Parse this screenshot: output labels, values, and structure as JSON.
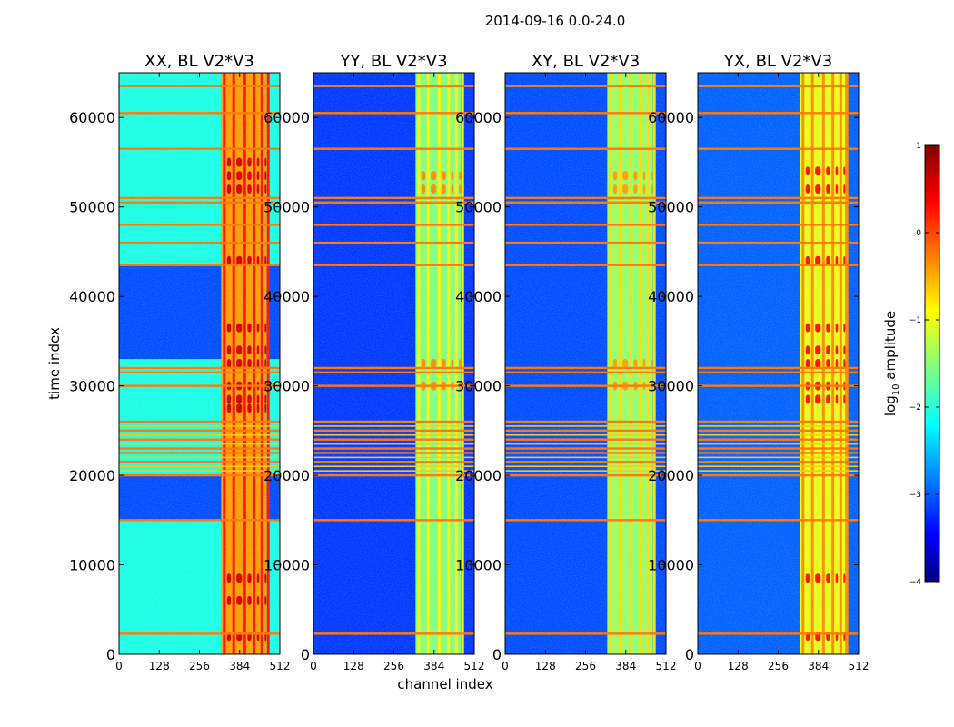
{
  "figure_title": "2014-09-16 0.0-24.0",
  "colorbar": {
    "label_prefix": "log",
    "label_sub": "10",
    "label_suffix": " amplitude",
    "min": -4,
    "max": 1,
    "tick_labels": [
      "−4",
      "−3",
      "−2",
      "−1",
      "0",
      "1"
    ],
    "tick_values": [
      -4,
      -3,
      -2,
      -1,
      0,
      1
    ],
    "colormap": "jet",
    "colors": [
      "#000080",
      "#0000ff",
      "#00ffff",
      "#ffff00",
      "#ff0000",
      "#800000"
    ]
  },
  "chart_data": {
    "type": "heatmap",
    "title": "2014-09-16 0.0-24.0",
    "xlabel": "channel index",
    "ylabel": "time index",
    "xlim": [
      0,
      512
    ],
    "ylim": [
      0,
      65000
    ],
    "x_ticks": [
      0,
      128,
      256,
      384,
      512
    ],
    "x_tick_labels": [
      "0",
      "128",
      "256",
      "384",
      "512"
    ],
    "y_ticks": [
      0,
      10000,
      20000,
      30000,
      40000,
      50000,
      60000
    ],
    "y_tick_labels": [
      "0",
      "10000",
      "20000",
      "30000",
      "40000",
      "50000",
      "60000"
    ],
    "value_label": "log10 amplitude",
    "value_range": [
      -4,
      1
    ],
    "panels": [
      {
        "title": "XX, BL V2*V3",
        "background_level": -2.0,
        "signal_band_channels": [
          325,
          470
        ],
        "band_level": -0.4,
        "hot_rows": [
          27500,
          28500,
          30000,
          32500,
          34000,
          36500,
          44000,
          52000,
          53500,
          55000,
          8500,
          2000,
          6000
        ],
        "hot_level": 0.6,
        "quiet_row_ranges": [
          [
            15000,
            20000
          ],
          [
            33000,
            43500
          ]
        ]
      },
      {
        "title": "YY, BL V2*V3",
        "background_level": -3.1,
        "signal_band_channels": [
          325,
          470
        ],
        "band_level": -1.5,
        "hot_rows": [
          30000,
          32500,
          52000,
          53500
        ],
        "hot_level": -0.3,
        "quiet_row_ranges": []
      },
      {
        "title": "XY, BL V2*V3",
        "background_level": -3.0,
        "signal_band_channels": [
          325,
          470
        ],
        "band_level": -1.4,
        "hot_rows": [
          30000,
          32500,
          52000,
          53500
        ],
        "hot_level": -0.4,
        "quiet_row_ranges": []
      },
      {
        "title": "YX, BL V2*V3",
        "background_level": -2.9,
        "signal_band_channels": [
          325,
          470
        ],
        "band_level": -1.0,
        "hot_rows": [
          28500,
          30000,
          32500,
          34000,
          36500,
          44000,
          52000,
          54000,
          8500,
          2000
        ],
        "hot_level": 0.3,
        "quiet_row_ranges": []
      }
    ],
    "vertical_line_channels": [
      335,
      365,
      400,
      430,
      455,
      475
    ],
    "rfi_row_lines": [
      2300,
      15000,
      20000,
      21500,
      22500,
      23000,
      24000,
      25000,
      26000,
      30000,
      31500,
      32000,
      43500,
      46000,
      48000,
      50500,
      51000,
      56500,
      60500,
      63500
    ],
    "rfi_band_ranges": [
      [
        20000,
        26000
      ]
    ]
  }
}
